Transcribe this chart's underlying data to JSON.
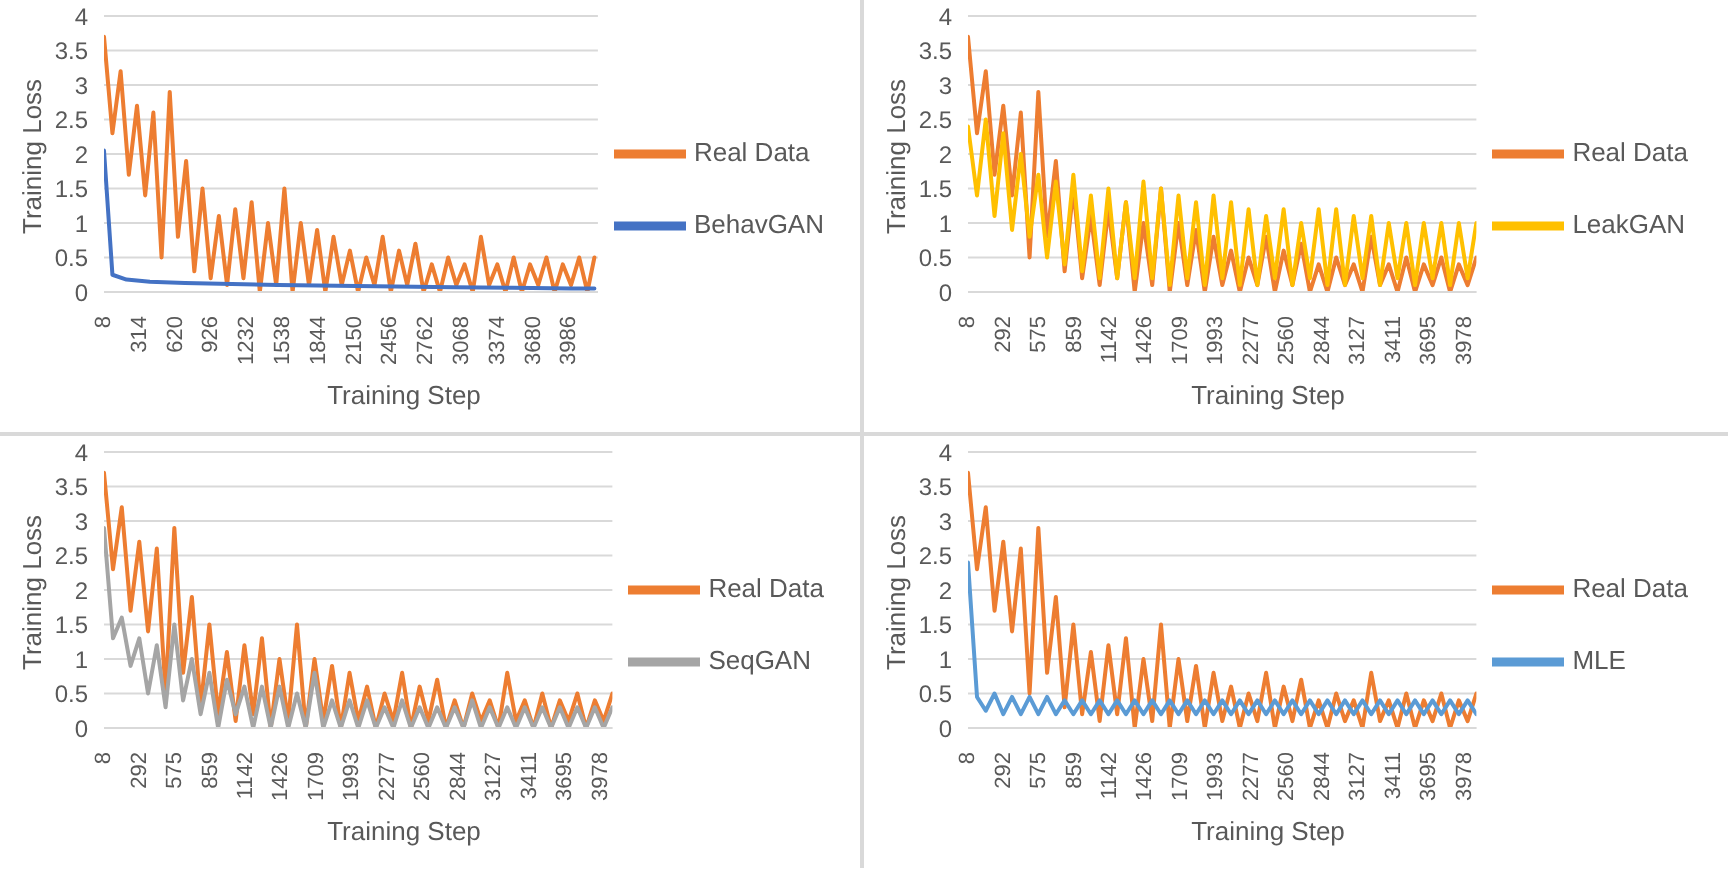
{
  "chart_data": [
    {
      "type": "line",
      "xlabel": "Training Step",
      "ylabel": "Training Loss",
      "xlim": [
        8,
        4230
      ],
      "xticks": [
        8,
        314,
        620,
        926,
        1232,
        1538,
        1844,
        2150,
        2456,
        2762,
        3068,
        3374,
        3680,
        3986
      ],
      "ylim": [
        0,
        4
      ],
      "yticks": [
        0,
        0.5,
        1,
        1.5,
        2,
        2.5,
        3,
        3.5,
        4
      ],
      "grid": "y",
      "legend": "right",
      "marker": "none",
      "line_style": "solid",
      "series": [
        {
          "name": "Real Data",
          "color": "#ed7d31",
          "x": [
            8,
            80,
            150,
            220,
            290,
            360,
            430,
            500,
            570,
            640,
            710,
            780,
            850,
            920,
            990,
            1060,
            1130,
            1200,
            1270,
            1340,
            1410,
            1480,
            1550,
            1620,
            1690,
            1760,
            1830,
            1900,
            1970,
            2040,
            2110,
            2180,
            2250,
            2320,
            2390,
            2460,
            2530,
            2600,
            2670,
            2740,
            2810,
            2880,
            2950,
            3020,
            3090,
            3160,
            3230,
            3300,
            3370,
            3440,
            3510,
            3580,
            3650,
            3720,
            3790,
            3860,
            3930,
            4000,
            4070,
            4140,
            4200
          ],
          "values": [
            3.7,
            2.3,
            3.2,
            1.7,
            2.7,
            1.4,
            2.6,
            0.5,
            2.9,
            0.8,
            1.9,
            0.3,
            1.5,
            0.2,
            1.1,
            0.1,
            1.2,
            0.2,
            1.3,
            0,
            1,
            0.1,
            1.5,
            0,
            1,
            0.1,
            0.9,
            0,
            0.8,
            0.1,
            0.6,
            0,
            0.5,
            0.1,
            0.8,
            0,
            0.6,
            0.1,
            0.7,
            0,
            0.4,
            0,
            0.5,
            0.1,
            0.4,
            0,
            0.8,
            0.1,
            0.4,
            0,
            0.5,
            0,
            0.4,
            0.1,
            0.5,
            0,
            0.4,
            0.1,
            0.5,
            0,
            0.5
          ]
        },
        {
          "name": "BehavGAN",
          "color": "#4472c4",
          "x": [
            8,
            80,
            200,
            400,
            700,
            1000,
            1500,
            2000,
            2500,
            3000,
            3500,
            4000,
            4200
          ],
          "values": [
            2.05,
            0.25,
            0.18,
            0.15,
            0.13,
            0.12,
            0.1,
            0.09,
            0.08,
            0.07,
            0.06,
            0.05,
            0.05
          ]
        }
      ]
    },
    {
      "type": "line",
      "xlabel": "Training Step",
      "ylabel": "Training Loss",
      "xlim": [
        8,
        4070
      ],
      "xticks": [
        8,
        292,
        575,
        859,
        1142,
        1426,
        1709,
        1993,
        2277,
        2560,
        2844,
        3127,
        3411,
        3695,
        3978
      ],
      "ylim": [
        0,
        4
      ],
      "yticks": [
        0,
        0.5,
        1,
        1.5,
        2,
        2.5,
        3,
        3.5,
        4
      ],
      "grid": "y",
      "legend": "right",
      "marker": "none",
      "line_style": "solid",
      "series": [
        {
          "name": "Real Data",
          "color": "#ed7d31",
          "x": [
            8,
            80,
            150,
            220,
            290,
            360,
            430,
            500,
            570,
            640,
            710,
            780,
            850,
            920,
            990,
            1060,
            1130,
            1200,
            1270,
            1340,
            1410,
            1480,
            1550,
            1620,
            1690,
            1760,
            1830,
            1900,
            1970,
            2040,
            2110,
            2180,
            2250,
            2320,
            2390,
            2460,
            2530,
            2600,
            2670,
            2740,
            2810,
            2880,
            2950,
            3020,
            3090,
            3160,
            3230,
            3300,
            3370,
            3440,
            3510,
            3580,
            3650,
            3720,
            3790,
            3860,
            3930,
            4000,
            4070
          ],
          "values": [
            3.7,
            2.3,
            3.2,
            1.7,
            2.7,
            1.4,
            2.6,
            0.5,
            2.9,
            0.8,
            1.9,
            0.3,
            1.5,
            0.2,
            1.1,
            0.1,
            1.2,
            0.2,
            1.3,
            0,
            1,
            0.1,
            1.5,
            0,
            1,
            0.1,
            0.9,
            0,
            0.8,
            0.1,
            0.6,
            0,
            0.5,
            0.1,
            0.8,
            0,
            0.6,
            0.1,
            0.7,
            0,
            0.4,
            0,
            0.5,
            0.1,
            0.4,
            0,
            0.8,
            0.1,
            0.4,
            0,
            0.5,
            0,
            0.4,
            0.1,
            0.5,
            0,
            0.4,
            0.1,
            0.5
          ]
        },
        {
          "name": "LeakGAN",
          "color": "#ffc000",
          "x": [
            8,
            80,
            150,
            220,
            290,
            360,
            430,
            500,
            570,
            640,
            710,
            780,
            850,
            920,
            990,
            1060,
            1130,
            1200,
            1270,
            1340,
            1410,
            1480,
            1550,
            1620,
            1690,
            1760,
            1830,
            1900,
            1970,
            2040,
            2110,
            2180,
            2250,
            2320,
            2390,
            2460,
            2530,
            2600,
            2670,
            2740,
            2810,
            2880,
            2950,
            3020,
            3090,
            3160,
            3230,
            3300,
            3370,
            3440,
            3510,
            3580,
            3650,
            3720,
            3790,
            3860,
            3930,
            4000,
            4070
          ],
          "values": [
            2.4,
            1.4,
            2.5,
            1.1,
            2.3,
            0.9,
            2,
            0.8,
            1.7,
            0.5,
            1.6,
            0.4,
            1.7,
            0.3,
            1.4,
            0.2,
            1.5,
            0.2,
            1.3,
            0.2,
            1.6,
            0.2,
            1.5,
            0.1,
            1.4,
            0.2,
            1.3,
            0.1,
            1.4,
            0.2,
            1.3,
            0.1,
            1.2,
            0.1,
            1.1,
            0.2,
            1.2,
            0.1,
            1,
            0.2,
            1.2,
            0.1,
            1.2,
            0.1,
            1.1,
            0.2,
            1.1,
            0.1,
            1,
            0.2,
            1,
            0.1,
            1,
            0.2,
            1,
            0.1,
            1,
            0.2,
            1
          ]
        }
      ]
    },
    {
      "type": "line",
      "xlabel": "Training Step",
      "ylabel": "Training Loss",
      "xlim": [
        8,
        4070
      ],
      "xticks": [
        8,
        292,
        575,
        859,
        1142,
        1426,
        1709,
        1993,
        2277,
        2560,
        2844,
        3127,
        3411,
        3695,
        3978
      ],
      "ylim": [
        0,
        4
      ],
      "yticks": [
        0,
        0.5,
        1,
        1.5,
        2,
        2.5,
        3,
        3.5,
        4
      ],
      "grid": "y",
      "legend": "right",
      "marker": "none",
      "line_style": "solid",
      "series": [
        {
          "name": "Real Data",
          "color": "#ed7d31",
          "x": [
            8,
            80,
            150,
            220,
            290,
            360,
            430,
            500,
            570,
            640,
            710,
            780,
            850,
            920,
            990,
            1060,
            1130,
            1200,
            1270,
            1340,
            1410,
            1480,
            1550,
            1620,
            1690,
            1760,
            1830,
            1900,
            1970,
            2040,
            2110,
            2180,
            2250,
            2320,
            2390,
            2460,
            2530,
            2600,
            2670,
            2740,
            2810,
            2880,
            2950,
            3020,
            3090,
            3160,
            3230,
            3300,
            3370,
            3440,
            3510,
            3580,
            3650,
            3720,
            3790,
            3860,
            3930,
            4000,
            4070
          ],
          "values": [
            3.7,
            2.3,
            3.2,
            1.7,
            2.7,
            1.4,
            2.6,
            0.5,
            2.9,
            0.8,
            1.9,
            0.3,
            1.5,
            0.2,
            1.1,
            0.1,
            1.2,
            0.2,
            1.3,
            0,
            1,
            0.1,
            1.5,
            0,
            1,
            0.1,
            0.9,
            0,
            0.8,
            0.1,
            0.6,
            0,
            0.5,
            0.1,
            0.8,
            0,
            0.6,
            0.1,
            0.7,
            0,
            0.4,
            0,
            0.5,
            0.1,
            0.4,
            0,
            0.8,
            0.1,
            0.4,
            0,
            0.5,
            0,
            0.4,
            0.1,
            0.5,
            0,
            0.4,
            0.1,
            0.5
          ]
        },
        {
          "name": "SeqGAN",
          "color": "#a5a5a5",
          "x": [
            8,
            80,
            150,
            220,
            290,
            360,
            430,
            500,
            570,
            640,
            710,
            780,
            850,
            920,
            990,
            1060,
            1130,
            1200,
            1270,
            1340,
            1410,
            1480,
            1550,
            1620,
            1690,
            1760,
            1830,
            1900,
            1970,
            2040,
            2110,
            2180,
            2250,
            2320,
            2390,
            2460,
            2530,
            2600,
            2670,
            2740,
            2810,
            2880,
            2950,
            3020,
            3090,
            3160,
            3230,
            3300,
            3370,
            3440,
            3510,
            3580,
            3650,
            3720,
            3790,
            3860,
            3930,
            4000,
            4070
          ],
          "values": [
            2.9,
            1.3,
            1.6,
            0.9,
            1.3,
            0.5,
            1.2,
            0.3,
            1.5,
            0.4,
            1,
            0.2,
            0.8,
            0,
            0.7,
            0.2,
            0.6,
            0,
            0.6,
            0,
            0.6,
            0,
            0.5,
            0,
            0.8,
            0,
            0.4,
            0,
            0.4,
            0,
            0.4,
            0,
            0.3,
            0,
            0.4,
            0,
            0.3,
            0,
            0.3,
            0,
            0.3,
            0,
            0.4,
            0,
            0.3,
            0,
            0.3,
            0,
            0.3,
            0,
            0.3,
            0,
            0.3,
            0,
            0.3,
            0,
            0.3,
            0,
            0.3
          ]
        }
      ]
    },
    {
      "type": "line",
      "xlabel": "Training Step",
      "ylabel": "Training Loss",
      "xlim": [
        8,
        4070
      ],
      "xticks": [
        8,
        292,
        575,
        859,
        1142,
        1426,
        1709,
        1993,
        2277,
        2560,
        2844,
        3127,
        3411,
        3695,
        3978
      ],
      "ylim": [
        0,
        4
      ],
      "yticks": [
        0,
        0.5,
        1,
        1.5,
        2,
        2.5,
        3,
        3.5,
        4
      ],
      "grid": "y",
      "legend": "right",
      "marker": "none",
      "line_style": "solid",
      "series": [
        {
          "name": "Real Data",
          "color": "#ed7d31",
          "x": [
            8,
            80,
            150,
            220,
            290,
            360,
            430,
            500,
            570,
            640,
            710,
            780,
            850,
            920,
            990,
            1060,
            1130,
            1200,
            1270,
            1340,
            1410,
            1480,
            1550,
            1620,
            1690,
            1760,
            1830,
            1900,
            1970,
            2040,
            2110,
            2180,
            2250,
            2320,
            2390,
            2460,
            2530,
            2600,
            2670,
            2740,
            2810,
            2880,
            2950,
            3020,
            3090,
            3160,
            3230,
            3300,
            3370,
            3440,
            3510,
            3580,
            3650,
            3720,
            3790,
            3860,
            3930,
            4000,
            4070
          ],
          "values": [
            3.7,
            2.3,
            3.2,
            1.7,
            2.7,
            1.4,
            2.6,
            0.5,
            2.9,
            0.8,
            1.9,
            0.3,
            1.5,
            0.2,
            1.1,
            0.1,
            1.2,
            0.2,
            1.3,
            0,
            1,
            0.1,
            1.5,
            0,
            1,
            0.1,
            0.9,
            0,
            0.8,
            0.1,
            0.6,
            0,
            0.5,
            0.1,
            0.8,
            0,
            0.6,
            0.1,
            0.7,
            0,
            0.4,
            0,
            0.5,
            0.1,
            0.4,
            0,
            0.8,
            0.1,
            0.4,
            0,
            0.5,
            0,
            0.4,
            0.1,
            0.5,
            0,
            0.4,
            0.1,
            0.5
          ]
        },
        {
          "name": "MLE",
          "color": "#5b9bd5",
          "x": [
            8,
            80,
            150,
            220,
            290,
            360,
            430,
            500,
            570,
            640,
            710,
            780,
            850,
            920,
            990,
            1060,
            1130,
            1200,
            1270,
            1340,
            1410,
            1480,
            1550,
            1620,
            1690,
            1760,
            1830,
            1900,
            1970,
            2040,
            2110,
            2180,
            2250,
            2320,
            2390,
            2460,
            2530,
            2600,
            2670,
            2740,
            2810,
            2880,
            2950,
            3020,
            3090,
            3160,
            3230,
            3300,
            3370,
            3440,
            3510,
            3580,
            3650,
            3720,
            3790,
            3860,
            3930,
            4000,
            4070
          ],
          "values": [
            2.4,
            0.45,
            0.25,
            0.5,
            0.2,
            0.45,
            0.2,
            0.45,
            0.2,
            0.45,
            0.2,
            0.4,
            0.2,
            0.4,
            0.2,
            0.4,
            0.2,
            0.4,
            0.2,
            0.4,
            0.2,
            0.4,
            0.2,
            0.4,
            0.2,
            0.4,
            0.2,
            0.4,
            0.2,
            0.4,
            0.2,
            0.4,
            0.2,
            0.4,
            0.2,
            0.4,
            0.2,
            0.4,
            0.2,
            0.4,
            0.2,
            0.4,
            0.2,
            0.4,
            0.2,
            0.4,
            0.2,
            0.4,
            0.2,
            0.4,
            0.2,
            0.4,
            0.2,
            0.4,
            0.2,
            0.4,
            0.2,
            0.4,
            0.2
          ]
        }
      ]
    }
  ]
}
